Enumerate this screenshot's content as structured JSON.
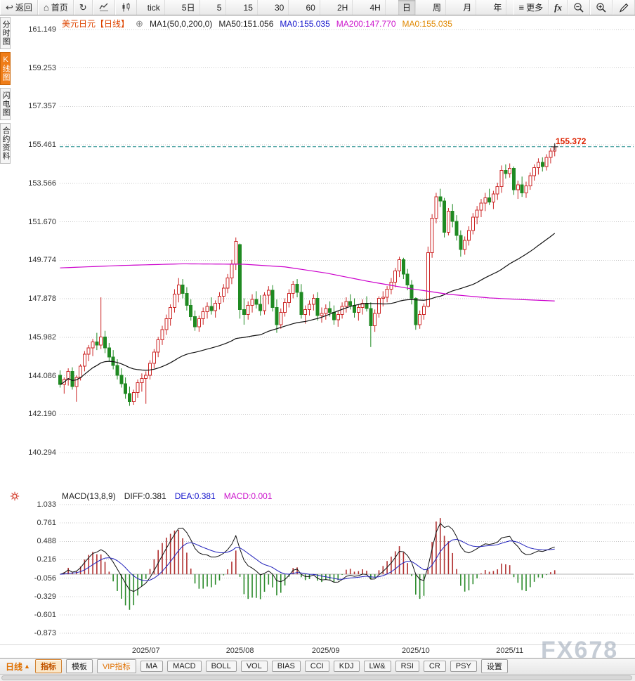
{
  "toolbar_top": {
    "back_label": "返回",
    "home_label": "首页",
    "periods": [
      "tick",
      "5日",
      "5",
      "15",
      "30",
      "60",
      "2H",
      "4H",
      "日",
      "周",
      "月",
      "年"
    ],
    "active_period": "日",
    "more_label": "更多",
    "fx_label": "fx"
  },
  "sidebar": {
    "tabs": [
      {
        "label": "分时图",
        "active": false
      },
      {
        "label": "K线图",
        "active": true
      },
      {
        "label": "闪电图",
        "active": false
      },
      {
        "label": "合约资料",
        "active": false
      }
    ]
  },
  "chart_header": {
    "symbol": "美元日元",
    "period_tag": "【日线】",
    "ma_settings": "MA1(50,0,200,0)",
    "ma50": "MA50:151.056",
    "ma0_first": "MA0:155.035",
    "ma200": "MA200:147.770",
    "ma0_second": "MA0:155.035"
  },
  "price_label": "155.372",
  "macd_header": {
    "title": "MACD(13,8,9)",
    "diff": "DIFF:0.381",
    "dea": "DEA:0.381",
    "macd": "MACD:0.001"
  },
  "bottom_bar": {
    "period_label": "日线",
    "arrow": "▲",
    "tabs": [
      {
        "label": "指标",
        "style": "active"
      },
      {
        "label": "模板",
        "style": "normal"
      },
      {
        "label": "VIP指标",
        "style": "vip"
      },
      {
        "label": "MA",
        "style": "normal"
      },
      {
        "label": "MACD",
        "style": "normal"
      },
      {
        "label": "BOLL",
        "style": "normal"
      },
      {
        "label": "VOL",
        "style": "normal"
      },
      {
        "label": "BIAS",
        "style": "normal"
      },
      {
        "label": "CCI",
        "style": "normal"
      },
      {
        "label": "KDJ",
        "style": "normal"
      },
      {
        "label": "LW&",
        "style": "normal"
      },
      {
        "label": "RSI",
        "style": "normal"
      },
      {
        "label": "CR",
        "style": "normal"
      },
      {
        "label": "PSY",
        "style": "normal"
      },
      {
        "label": "设置",
        "style": "normal"
      }
    ]
  },
  "watermark": "FX678",
  "chart_data": {
    "type": "candlestick",
    "title": "美元日元 日线 (USD/JPY daily with MA50/MA200 and MACD)",
    "y_ticks_main": [
      161.149,
      159.253,
      157.357,
      155.461,
      153.566,
      151.67,
      149.774,
      147.878,
      145.982,
      144.086,
      142.19,
      140.294
    ],
    "y_ticks_macd": [
      1.033,
      0.761,
      0.488,
      0.216,
      -0.056,
      -0.329,
      -0.601,
      -0.873
    ],
    "x_labels": [
      {
        "label": "2025/07",
        "index": 21
      },
      {
        "label": "2025/08",
        "index": 44
      },
      {
        "label": "2025/09",
        "index": 65
      },
      {
        "label": "2025/10",
        "index": 87
      },
      {
        "label": "2025/11",
        "index": 110
      }
    ],
    "current_price": 155.372,
    "ma50_period": 50,
    "macd_params": [
      13,
      8,
      9
    ],
    "indicator_readouts": {
      "ma50_last": 151.056,
      "ma0": 155.035,
      "ma200_last": 147.77,
      "diff_last": 0.381,
      "dea_last": 0.381,
      "macd_last": 0.001
    },
    "colors": {
      "up": "#cc2626",
      "down": "#1f8a22",
      "ma50": "#111111",
      "ma200": "#cc00cc",
      "diff_line": "#111111",
      "dea_line": "#2222bb",
      "macd_bar_up": "#b03030",
      "macd_bar_down": "#2a8a2a",
      "current_line": "#1a8a8a",
      "price_label": "#dd2200"
    },
    "candles": [
      [
        144.1,
        144.35,
        143.5,
        143.65
      ],
      [
        143.65,
        144,
        143.2,
        143.9
      ],
      [
        143.9,
        144.45,
        143.6,
        144.3
      ],
      [
        144.3,
        144.5,
        143.4,
        143.55
      ],
      [
        143.55,
        144.1,
        142.8,
        144
      ],
      [
        144,
        144.65,
        143.85,
        144.55
      ],
      [
        144.55,
        145.3,
        144.3,
        145.15
      ],
      [
        145.15,
        145.6,
        144.8,
        145.45
      ],
      [
        145.45,
        145.9,
        145.05,
        145.75
      ],
      [
        145.75,
        146.2,
        145.35,
        145.6
      ],
      [
        145.6,
        147.95,
        145.4,
        146
      ],
      [
        146,
        146.3,
        145.2,
        145.45
      ],
      [
        145.45,
        145.7,
        144.8,
        145
      ],
      [
        145,
        145.35,
        144.4,
        144.6
      ],
      [
        144.6,
        144.9,
        143.9,
        144.1
      ],
      [
        144.1,
        144.45,
        143.5,
        143.7
      ],
      [
        143.7,
        144,
        142.95,
        143.2
      ],
      [
        143.2,
        143.55,
        142.6,
        142.8
      ],
      [
        142.8,
        143.4,
        142.65,
        143.25
      ],
      [
        143.25,
        143.9,
        143,
        143.75
      ],
      [
        143.75,
        144.2,
        143.3,
        143.95
      ],
      [
        143.95,
        144.3,
        142.7,
        144.1
      ],
      [
        144.1,
        144.85,
        143.9,
        144.7
      ],
      [
        144.7,
        145.4,
        144.45,
        145.25
      ],
      [
        145.25,
        146,
        145,
        145.85
      ],
      [
        145.85,
        146.55,
        145.6,
        146.35
      ],
      [
        146.35,
        147.1,
        146.1,
        146.9
      ],
      [
        146.9,
        147.6,
        146.55,
        147.45
      ],
      [
        147.45,
        148.35,
        147.2,
        148.1
      ],
      [
        148.1,
        148.9,
        147.7,
        148.55
      ],
      [
        148.55,
        148.85,
        147.9,
        148.15
      ],
      [
        148.15,
        148.45,
        147.3,
        147.55
      ],
      [
        147.55,
        147.85,
        146.8,
        147
      ],
      [
        147,
        147.3,
        146.3,
        146.5
      ],
      [
        146.5,
        147.05,
        146.25,
        146.9
      ],
      [
        146.9,
        147.45,
        146.6,
        147.25
      ],
      [
        147.25,
        147.7,
        146.9,
        147.5
      ],
      [
        147.5,
        147.95,
        147.1,
        147.3
      ],
      [
        147.3,
        147.8,
        146.95,
        147.65
      ],
      [
        147.65,
        148.2,
        147.35,
        148
      ],
      [
        148,
        148.6,
        147.7,
        148.4
      ],
      [
        148.4,
        149.1,
        148.15,
        148.9
      ],
      [
        148.9,
        149.8,
        148.6,
        149.6
      ],
      [
        149.6,
        150.9,
        149.3,
        150.7
      ],
      [
        150.55,
        150.6,
        146.9,
        147.35
      ],
      [
        147.35,
        147.9,
        146.6,
        147.1
      ],
      [
        147.1,
        147.75,
        146.85,
        147.55
      ],
      [
        147.55,
        148.1,
        147.2,
        147.85
      ],
      [
        147.85,
        148.25,
        147.4,
        147.6
      ],
      [
        147.6,
        148.05,
        147.05,
        147.3
      ],
      [
        147.3,
        148.2,
        147.1,
        148.05
      ],
      [
        148.05,
        148.5,
        147.6,
        148.3
      ],
      [
        148.3,
        148.55,
        147.25,
        147.45
      ],
      [
        147.45,
        147.85,
        146.2,
        146.6
      ],
      [
        146.6,
        147.4,
        146.4,
        147.2
      ],
      [
        147.2,
        147.9,
        147,
        147.7
      ],
      [
        147.7,
        148.35,
        147.45,
        148.15
      ],
      [
        148.15,
        148.75,
        147.9,
        148.6
      ],
      [
        148.6,
        148.85,
        147.95,
        148.2
      ],
      [
        148.2,
        148.6,
        146.9,
        147.1
      ],
      [
        147.1,
        147.55,
        146.65,
        147.35
      ],
      [
        147.35,
        147.8,
        147.05,
        147.6
      ],
      [
        147.6,
        148.1,
        147.3,
        147.9
      ],
      [
        147.9,
        148.2,
        146.8,
        147.05
      ],
      [
        147.05,
        147.45,
        146.7,
        147.15
      ],
      [
        147.15,
        147.6,
        146.85,
        147.4
      ],
      [
        147.4,
        147.75,
        147,
        147.2
      ],
      [
        147.2,
        147.55,
        146.6,
        146.85
      ],
      [
        146.85,
        147.3,
        146.5,
        147.1
      ],
      [
        147.1,
        147.7,
        146.9,
        147.5
      ],
      [
        147.5,
        147.95,
        147.2,
        147.75
      ],
      [
        147.75,
        148.1,
        147.35,
        147.55
      ],
      [
        147.55,
        147.9,
        146.95,
        147.2
      ],
      [
        147.2,
        147.6,
        146.8,
        147.45
      ],
      [
        147.45,
        147.85,
        147.1,
        147.65
      ],
      [
        147.65,
        148,
        147.25,
        147.4
      ],
      [
        147.4,
        147.7,
        145.5,
        146.55
      ],
      [
        146.55,
        147.35,
        146.25,
        147.15
      ],
      [
        147.15,
        148,
        146.95,
        147.9
      ],
      [
        147.9,
        148.25,
        147.5,
        147.95
      ],
      [
        147.95,
        148.5,
        147.7,
        148.35
      ],
      [
        148.35,
        148.9,
        148.1,
        148.7
      ],
      [
        148.7,
        149.4,
        148.45,
        149.25
      ],
      [
        149.25,
        149.95,
        148.95,
        149.8
      ],
      [
        149.8,
        149.9,
        148.85,
        149.1
      ],
      [
        149.1,
        149.35,
        148.3,
        148.55
      ],
      [
        148.55,
        148.8,
        147.6,
        147.9
      ],
      [
        147.9,
        147.95,
        146.35,
        146.6
      ],
      [
        146.6,
        147.3,
        146.4,
        147.1
      ],
      [
        147.1,
        147.65,
        146.85,
        147.5
      ],
      [
        147.5,
        150.45,
        147.45,
        150.15
      ],
      [
        150.15,
        152.05,
        149.9,
        151.85
      ],
      [
        151.85,
        153.1,
        151.6,
        152.9
      ],
      [
        152.9,
        153.3,
        152.4,
        152.7
      ],
      [
        152.7,
        152.85,
        150.9,
        151.15
      ],
      [
        151.15,
        152.35,
        151,
        152.2
      ],
      [
        152.2,
        152.55,
        151.4,
        151.7
      ],
      [
        151.7,
        152,
        150.75,
        151
      ],
      [
        151,
        151.25,
        149.95,
        150.3
      ],
      [
        150.3,
        150.95,
        150.05,
        150.75
      ],
      [
        150.75,
        151.45,
        150.5,
        151.25
      ],
      [
        151.25,
        152.1,
        151.05,
        151.9
      ],
      [
        151.9,
        152.45,
        151.55,
        152.25
      ],
      [
        152.25,
        152.8,
        151.9,
        152.6
      ],
      [
        152.6,
        153.1,
        152.2,
        152.85
      ],
      [
        152.85,
        153.3,
        152.5,
        152.65
      ],
      [
        152.65,
        153.2,
        152.3,
        153.05
      ],
      [
        153.05,
        153.6,
        152.75,
        153.4
      ],
      [
        153.4,
        154.45,
        153.1,
        154.2
      ],
      [
        154.2,
        154.5,
        153.8,
        154.05
      ],
      [
        154.05,
        154.55,
        153.85,
        154.3
      ],
      [
        154.3,
        154.4,
        153,
        153.25
      ],
      [
        153.25,
        153.7,
        152.8,
        153.5
      ],
      [
        153.5,
        153.9,
        152.9,
        153.1
      ],
      [
        153.1,
        153.65,
        152.85,
        153.45
      ],
      [
        153.45,
        154.1,
        153.25,
        153.95
      ],
      [
        153.95,
        154.5,
        153.7,
        154.35
      ],
      [
        154.35,
        154.8,
        154,
        154.6
      ],
      [
        154.6,
        154.85,
        154.15,
        154.4
      ],
      [
        154.4,
        155,
        154.2,
        154.85
      ],
      [
        154.85,
        155.3,
        154.55,
        155.15
      ],
      [
        155.15,
        155.46,
        154.9,
        155.37
      ]
    ],
    "ma200_anchors": [
      [
        0,
        149.4
      ],
      [
        15,
        149.52
      ],
      [
        30,
        149.6
      ],
      [
        45,
        149.58
      ],
      [
        55,
        149.45
      ],
      [
        65,
        149.15
      ],
      [
        75,
        148.75
      ],
      [
        85,
        148.4
      ],
      [
        95,
        148.1
      ],
      [
        105,
        147.92
      ],
      [
        113,
        147.84
      ],
      [
        121,
        147.77
      ]
    ]
  }
}
